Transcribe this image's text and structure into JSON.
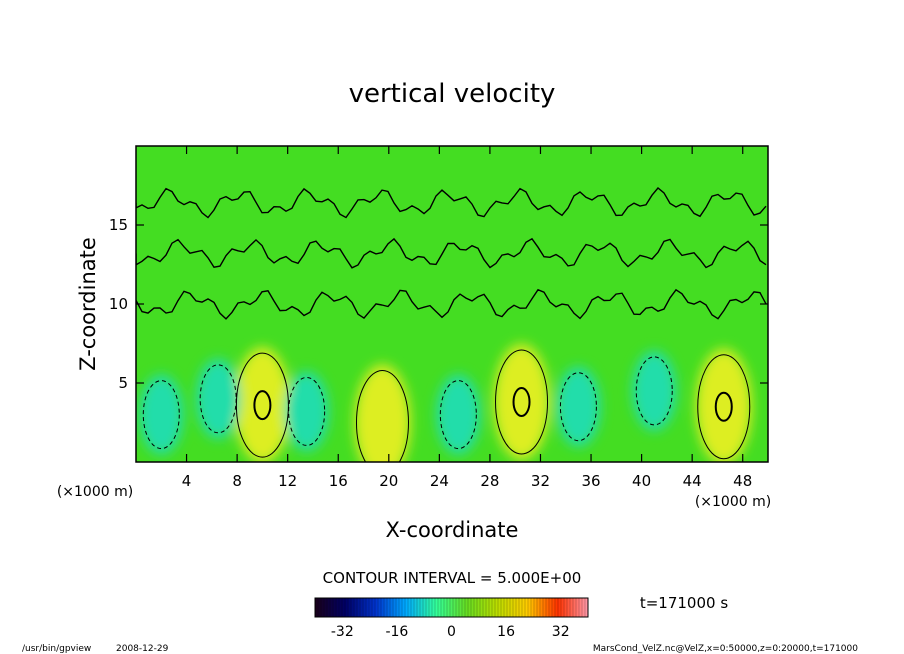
{
  "chart_data": {
    "type": "heatmap",
    "title": "vertical velocity",
    "xlabel": "X-coordinate",
    "ylabel": "Z-coordinate",
    "x_unit": "(×1000 m)",
    "z_unit": "(×1000 m)",
    "xlim": [
      0,
      50
    ],
    "ylim": [
      0,
      20
    ],
    "x_ticks": [
      4,
      8,
      12,
      16,
      20,
      24,
      28,
      32,
      36,
      40,
      44,
      48
    ],
    "y_ticks": [
      5,
      10,
      15
    ],
    "contour_interval_text": "CONTOUR INTERVAL = 5.000E+00",
    "time_text": "t=171000 s",
    "colorbar": {
      "range": [
        -40,
        40
      ],
      "ticks": [
        -32,
        -16,
        0,
        16,
        32
      ],
      "colors": [
        "#1a001a",
        "#000066",
        "#0033cc",
        "#00aaff",
        "#33ff99",
        "#66dd22",
        "#bbdd00",
        "#ffcc00",
        "#ff3300",
        "#ff99aa"
      ]
    },
    "field_colors": {
      "background": "#44dd22",
      "updraft": "#ddee22",
      "downdraft": "#22ddaa"
    },
    "updrafts": [
      {
        "x": 10.0,
        "z": 3.6,
        "w": 10
      },
      {
        "x": 19.5,
        "z": 2.5,
        "w": 6
      },
      {
        "x": 30.5,
        "z": 3.8,
        "w": 10
      },
      {
        "x": 46.5,
        "z": 3.5,
        "w": 10
      }
    ],
    "downdrafts": [
      {
        "x": 2.0,
        "z": 3.0,
        "w": -4
      },
      {
        "x": 6.5,
        "z": 4.0,
        "w": -4
      },
      {
        "x": 13.5,
        "z": 3.2,
        "w": -8
      },
      {
        "x": 25.5,
        "z": 3.0,
        "w": -6
      },
      {
        "x": 35.0,
        "z": 3.5,
        "w": -5
      },
      {
        "x": 41.0,
        "z": 4.5,
        "w": -5
      }
    ]
  },
  "footer": {
    "program": "/usr/bin/gpview",
    "date": "2008-12-29",
    "source": "MarsCond_VelZ.nc@VelZ,x=0:50000,z=0:20000,t=171000"
  }
}
